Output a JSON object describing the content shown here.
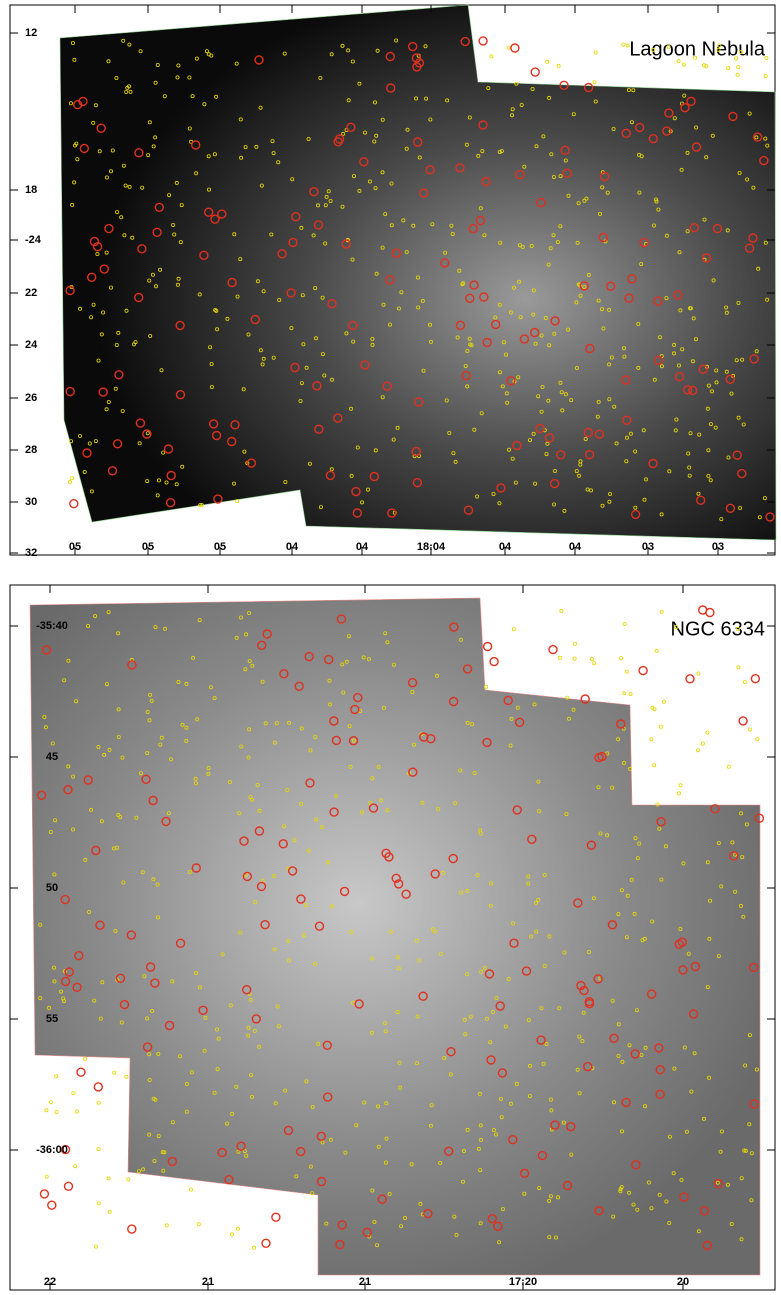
{
  "panels": [
    {
      "title": "Lagoon Nebula",
      "y_labels": [
        "12",
        "18",
        "-24",
        "22",
        "24",
        "26",
        "28",
        "30",
        "32"
      ],
      "x_labels": [
        "05",
        "05",
        "05",
        "04",
        "04",
        "18:04",
        "04",
        "04",
        "03",
        "03"
      ]
    },
    {
      "title": "NGC 6334",
      "y_labels": [
        "-35:40",
        "45",
        "50",
        "55",
        "-36:00"
      ],
      "x_labels": [
        "22",
        "21",
        "21",
        "17:20",
        "20"
      ]
    }
  ]
}
